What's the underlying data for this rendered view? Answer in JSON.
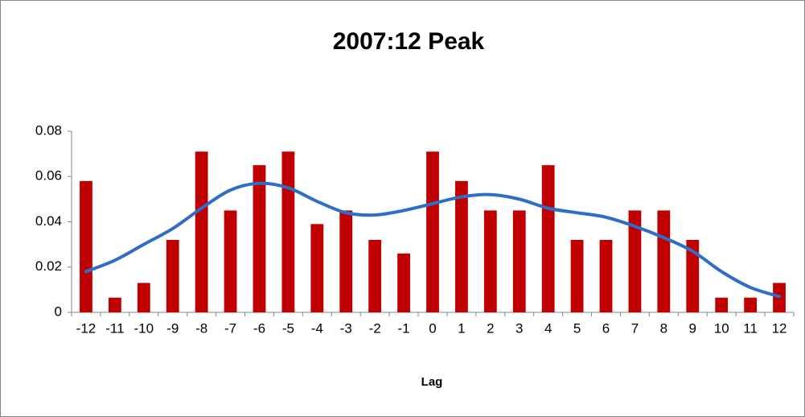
{
  "chart_data": {
    "type": "bar",
    "title": "2007:12 Peak",
    "x_label": "Lag",
    "categories": [
      "-12",
      "-11",
      "-10",
      "-9",
      "-8",
      "-7",
      "-6",
      "-5",
      "-4",
      "-3",
      "-2",
      "-1",
      "0",
      "1",
      "2",
      "3",
      "4",
      "5",
      "6",
      "7",
      "8",
      "9",
      "10",
      "11",
      "12"
    ],
    "series": [
      {
        "type": "bar",
        "color": "#c00000",
        "values": [
          0.058,
          0.0065,
          0.013,
          0.032,
          0.071,
          0.045,
          0.065,
          0.071,
          0.039,
          0.045,
          0.032,
          0.026,
          0.071,
          0.058,
          0.045,
          0.045,
          0.065,
          0.032,
          0.032,
          0.045,
          0.045,
          0.032,
          0.0065,
          0.0065,
          0.013
        ]
      },
      {
        "type": "line",
        "smooth": true,
        "color": "#2e6ec4",
        "values": [
          0.018,
          0.023,
          0.03,
          0.037,
          0.046,
          0.054,
          0.057,
          0.055,
          0.049,
          0.044,
          0.043,
          0.045,
          0.048,
          0.051,
          0.052,
          0.05,
          0.046,
          0.044,
          0.042,
          0.038,
          0.033,
          0.027,
          0.018,
          0.011,
          0.007
        ]
      }
    ],
    "ylim": [
      0,
      0.08
    ],
    "yticks": [
      0,
      0.02,
      0.04,
      0.06,
      0.08
    ],
    "grid": false
  }
}
